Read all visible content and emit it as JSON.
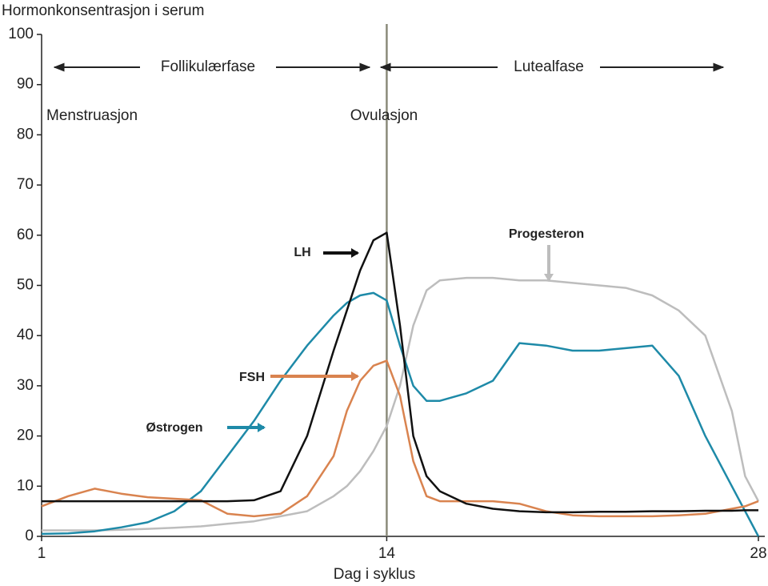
{
  "chart_data": {
    "type": "line",
    "y_label": "Hormonkonsentrasjon i serum",
    "x_label": "Dag i syklus",
    "annotations": [
      "Follikulærfase",
      "Lutealfase",
      "Menstruasjon",
      "Ovulasjon"
    ],
    "x": [
      1,
      2,
      3,
      4,
      5,
      6,
      7,
      8,
      9,
      10,
      11,
      12,
      12.5,
      13,
      13.5,
      14,
      14.5,
      15,
      15.5,
      16,
      17,
      18,
      19,
      20,
      21,
      22,
      23,
      24,
      25,
      26,
      27,
      27.5,
      28
    ],
    "series": [
      {
        "name": "LH",
        "color": "#111111",
        "values": [
          7,
          7,
          7,
          7,
          7,
          7,
          7,
          7,
          7.2,
          9,
          20,
          37,
          45,
          53,
          59,
          60.5,
          42,
          20,
          12,
          9,
          6.5,
          5.5,
          5,
          4.8,
          4.8,
          4.9,
          4.9,
          5,
          5,
          5.1,
          5.1,
          5.2,
          5.2
        ]
      },
      {
        "name": "FSH",
        "color": "#d9834f",
        "values": [
          6,
          8,
          9.5,
          8.5,
          7.8,
          7.5,
          7.2,
          4.5,
          4,
          4.5,
          8,
          16,
          25,
          31,
          34,
          35,
          28,
          15,
          8,
          7,
          7,
          7,
          6.5,
          5,
          4.2,
          4,
          4,
          4,
          4.2,
          4.5,
          5.5,
          6,
          7
        ]
      },
      {
        "name": "Østrogen",
        "color": "#1e8aa8",
        "values": [
          0.5,
          0.6,
          1,
          1.8,
          2.8,
          5,
          9,
          16,
          23,
          31,
          38,
          44,
          46.5,
          48,
          48.5,
          47,
          38,
          30,
          27,
          27,
          28.5,
          31,
          38.5,
          38,
          37,
          37,
          37.5,
          38,
          32,
          20,
          10,
          5,
          0
        ]
      },
      {
        "name": "Progesteron",
        "color": "#bdbdbd",
        "values": [
          1.2,
          1.2,
          1.2,
          1.3,
          1.5,
          1.7,
          2,
          2.5,
          3,
          4,
          5,
          8,
          10,
          13,
          17,
          22,
          30,
          42,
          49,
          51,
          51.5,
          51.5,
          51,
          51,
          50.5,
          50,
          49.5,
          48,
          45,
          40,
          25,
          12,
          7
        ]
      }
    ],
    "ovulation_day": 14,
    "xlim": [
      1,
      28
    ],
    "xticks": [
      1,
      14,
      28
    ],
    "ylim": [
      0,
      100
    ],
    "yticks": [
      0,
      10,
      20,
      30,
      40,
      50,
      60,
      70,
      80,
      90,
      100
    ]
  }
}
